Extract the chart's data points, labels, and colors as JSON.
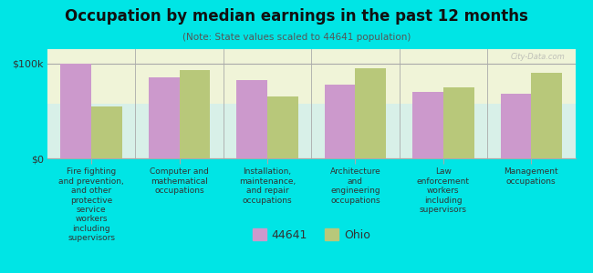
{
  "title": "Occupation by median earnings in the past 12 months",
  "subtitle": "(Note: State values scaled to 44641 population)",
  "background_color": "#00e5e5",
  "plot_bg_top": "#f0f4d8",
  "plot_bg_bottom": "#d8f0e8",
  "categories": [
    "Fire fighting\nand prevention,\nand other\nprotective\nservice\nworkers\nincluding\nsupervisors",
    "Computer and\nmathematical\noccupations",
    "Installation,\nmaintenance,\nand repair\noccupations",
    "Architecture\nand\nengineering\noccupations",
    "Law\nenforcement\nworkers\nincluding\nsupervisors",
    "Management\noccupations"
  ],
  "series_44641": [
    100000,
    85000,
    82000,
    78000,
    70000,
    68000
  ],
  "series_ohio": [
    55000,
    93000,
    65000,
    95000,
    75000,
    90000
  ],
  "color_44641": "#cc99cc",
  "color_ohio": "#b8c87a",
  "ylabel_ticks": [
    "$0",
    "$100k"
  ],
  "ytick_vals": [
    0,
    100000
  ],
  "ylim": [
    0,
    115000
  ],
  "legend_label_44641": "44641",
  "legend_label_ohio": "Ohio",
  "watermark": "City-Data.com"
}
